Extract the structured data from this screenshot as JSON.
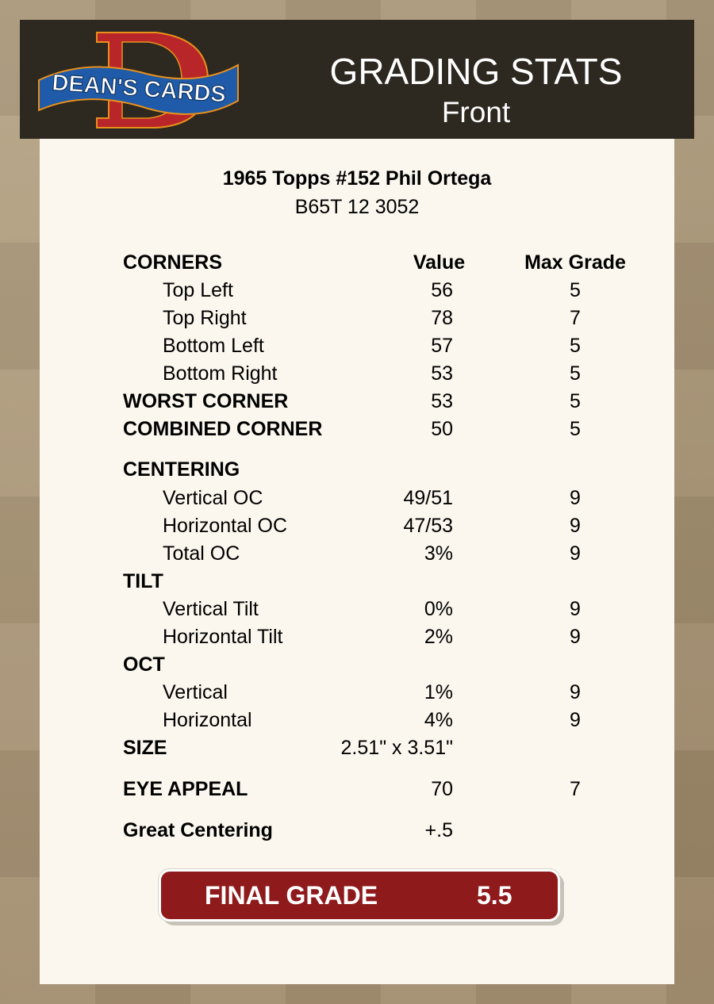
{
  "header": {
    "logo_text": "DEAN'S CARDS",
    "title": "GRADING STATS",
    "subtitle": "Front"
  },
  "card": {
    "name": "1965 Topps #152 Phil Ortega",
    "code": "B65T 12 3052"
  },
  "columns": {
    "value": "Value",
    "max_grade": "Max Grade"
  },
  "rows": [
    {
      "label": "CORNERS",
      "bold": true,
      "value": "",
      "max": "",
      "header": true
    },
    {
      "label": "Top Left",
      "indent": true,
      "value": "56",
      "max": "5"
    },
    {
      "label": "Top Right",
      "indent": true,
      "value": "78",
      "max": "7"
    },
    {
      "label": "Bottom Left",
      "indent": true,
      "value": "57",
      "max": "5"
    },
    {
      "label": "Bottom Right",
      "indent": true,
      "value": "53",
      "max": "5"
    },
    {
      "label": "WORST CORNER",
      "bold": true,
      "value": "53",
      "max": "5"
    },
    {
      "label": "COMBINED CORNER",
      "bold": true,
      "value": "50",
      "max": "5"
    },
    {
      "label": "CENTERING",
      "bold": true,
      "value": "",
      "max": ""
    },
    {
      "label": "Vertical OC",
      "indent": true,
      "value": "49/51",
      "max": "9"
    },
    {
      "label": "Horizontal OC",
      "indent": true,
      "value": "47/53",
      "max": "9"
    },
    {
      "label": "Total OC",
      "indent": true,
      "value": "3%",
      "max": "9"
    },
    {
      "label": "TILT",
      "bold": true,
      "value": "",
      "max": ""
    },
    {
      "label": "Vertical Tilt",
      "indent": true,
      "value": "0%",
      "max": "9"
    },
    {
      "label": "Horizontal Tilt",
      "indent": true,
      "value": "2%",
      "max": "9"
    },
    {
      "label": "OCT",
      "bold": true,
      "value": "",
      "max": ""
    },
    {
      "label": "Vertical",
      "indent": true,
      "value": "1%",
      "max": "9"
    },
    {
      "label": "Horizontal",
      "indent": true,
      "value": "4%",
      "max": "9"
    },
    {
      "label": "SIZE",
      "bold": true,
      "value": "2.51\" x 3.51\"",
      "max": ""
    },
    {
      "label": "EYE APPEAL",
      "bold": true,
      "value": "70",
      "max": "7"
    },
    {
      "label": "Great Centering",
      "bold": true,
      "value": "+.5",
      "max": ""
    }
  ],
  "final": {
    "label": "FINAL GRADE",
    "value": "5.5"
  },
  "colors": {
    "header_bg": "#2d2820",
    "panel_bg": "#fbf7ee",
    "final_bg": "#8f1a1c"
  }
}
